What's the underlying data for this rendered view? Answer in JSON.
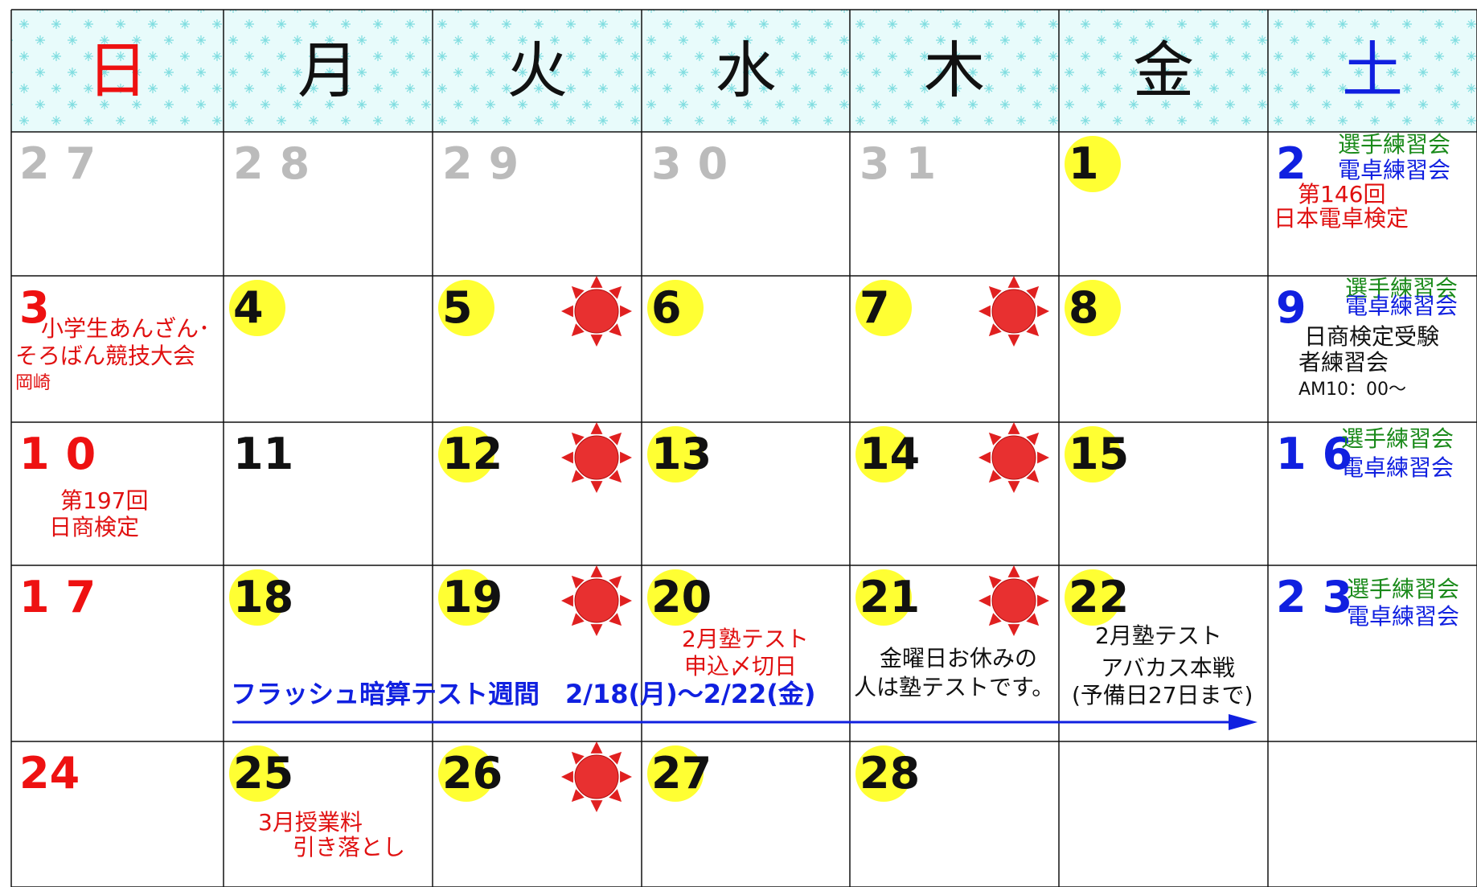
{
  "headers": [
    "日",
    "月",
    "火",
    "水",
    "木",
    "金",
    "土"
  ],
  "weeks": [
    [
      {
        "day": "27"
      },
      {
        "day": "28"
      },
      {
        "day": "29"
      },
      {
        "day": "30"
      },
      {
        "day": "31"
      },
      {
        "day": "1"
      },
      {
        "day": "2",
        "notes": [
          {
            "text": "選手練習会",
            "color": "#1a8a1a"
          },
          {
            "text": "電卓練習会",
            "color": "#1020e0"
          },
          {
            "text": "第146回",
            "color": "#e01010"
          },
          {
            "text": "日本電卓検定",
            "color": "#e01010"
          }
        ]
      }
    ],
    [
      {
        "day": "3",
        "notes": [
          {
            "text": "小学生あんざん･",
            "color": "#e01010"
          },
          {
            "text": "そろばん競技大会",
            "color": "#e01010"
          },
          {
            "text": "岡崎",
            "color": "#e01010"
          }
        ]
      },
      {
        "day": "4"
      },
      {
        "day": "5"
      },
      {
        "day": "6"
      },
      {
        "day": "7"
      },
      {
        "day": "8"
      },
      {
        "day": "9",
        "notes": [
          {
            "text": "選手練習会",
            "color": "#1a8a1a"
          },
          {
            "text": "電卓練習会",
            "color": "#1020e0"
          },
          {
            "text": "日商検定受験",
            "color": "#111111"
          },
          {
            "text": "者練習会",
            "color": "#111111"
          },
          {
            "text": "AM10：00～",
            "color": "#111111"
          }
        ]
      }
    ],
    [
      {
        "day": "10",
        "notes": [
          {
            "text": "第197回",
            "color": "#e01010"
          },
          {
            "text": "日商検定",
            "color": "#e01010"
          }
        ]
      },
      {
        "day": "11"
      },
      {
        "day": "12"
      },
      {
        "day": "13"
      },
      {
        "day": "14"
      },
      {
        "day": "15"
      },
      {
        "day": "16",
        "notes": [
          {
            "text": "選手練習会",
            "color": "#1a8a1a"
          },
          {
            "text": "電卓練習会",
            "color": "#1020e0"
          }
        ]
      }
    ],
    [
      {
        "day": "17"
      },
      {
        "day": "18"
      },
      {
        "day": "19"
      },
      {
        "day": "20",
        "notes": [
          {
            "text": "2月塾テスト",
            "color": "#e01010"
          },
          {
            "text": "申込〆切日",
            "color": "#e01010"
          }
        ]
      },
      {
        "day": "21",
        "notes": [
          {
            "text": "金曜日お休みの",
            "color": "#111111"
          },
          {
            "text": "人は塾テストです。",
            "color": "#111111"
          }
        ]
      },
      {
        "day": "22",
        "notes": [
          {
            "text": "2月塾テスト",
            "color": "#111111"
          },
          {
            "text": "アバカス本戦",
            "color": "#111111"
          },
          {
            "text": "(予備日27日まで)",
            "color": "#111111"
          }
        ]
      },
      {
        "day": "23",
        "notes": [
          {
            "text": "選手練習会",
            "color": "#1a8a1a"
          },
          {
            "text": "電卓練習会",
            "color": "#1020e0"
          }
        ]
      }
    ],
    [
      {
        "day": "24"
      },
      {
        "day": "25",
        "notes": [
          {
            "text": "3月授業料",
            "color": "#e01010"
          },
          {
            "text": "引き落とし",
            "color": "#e01010"
          }
        ]
      },
      {
        "day": "26"
      },
      {
        "day": "27"
      },
      {
        "day": "28"
      }
    ]
  ],
  "banner": "フラッシュ暗算テスト週間　2/18(月)～2/22(金)"
}
